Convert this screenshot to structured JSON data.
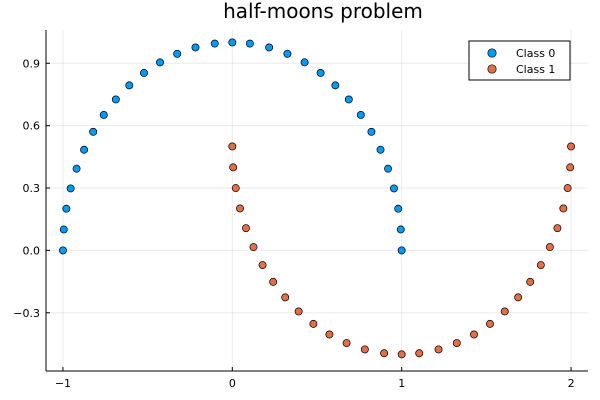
{
  "chart_data": {
    "type": "scatter",
    "title": "half-moons problem",
    "xlabel": "",
    "ylabel": "",
    "xlim": [
      -1.1,
      2.1
    ],
    "ylim": [
      -0.58,
      1.06
    ],
    "x_ticks": [
      -1,
      0,
      1,
      2
    ],
    "x_tick_labels": [
      "−1",
      "0",
      "1",
      "2"
    ],
    "y_ticks": [
      -0.3,
      0.0,
      0.3,
      0.6,
      0.9
    ],
    "y_tick_labels": [
      "−0.3",
      "0.0",
      "0.3",
      "0.6",
      "0.9"
    ],
    "grid": true,
    "legend_position": "top-right",
    "series": [
      {
        "name": "Class 0",
        "color": "#009af9",
        "x": [
          -1.0,
          -0.9949,
          -0.9797,
          -0.9545,
          -0.9195,
          -0.875,
          -0.8214,
          -0.7588,
          -0.6877,
          -0.6084,
          -0.5213,
          -0.4268,
          -0.3253,
          -0.2175,
          -0.1037,
          0.0,
          0.1037,
          0.2175,
          0.3253,
          0.4268,
          0.5213,
          0.6084,
          0.6877,
          0.7588,
          0.8214,
          0.875,
          0.9195,
          0.9545,
          0.9797,
          0.9949,
          1.0
        ],
        "y": [
          0.0,
          0.1006,
          0.2004,
          0.2982,
          0.393,
          0.4841,
          0.5703,
          0.6514,
          0.7259,
          0.7937,
          0.8534,
          0.9043,
          0.9456,
          0.9761,
          0.9946,
          1.0,
          0.9946,
          0.9761,
          0.9456,
          0.9043,
          0.8534,
          0.7937,
          0.7259,
          0.6514,
          0.5703,
          0.4841,
          0.393,
          0.2982,
          0.2004,
          0.1006,
          0.0
        ]
      },
      {
        "name": "Class 1",
        "color": "#e26f46",
        "x": [
          0.0,
          0.0051,
          0.0203,
          0.0455,
          0.0805,
          0.125,
          0.1786,
          0.2412,
          0.3123,
          0.3916,
          0.4787,
          0.5732,
          0.6747,
          0.7825,
          0.8963,
          1.0,
          1.1037,
          1.2175,
          1.3253,
          1.4268,
          1.5213,
          1.6084,
          1.6877,
          1.7588,
          1.8214,
          1.875,
          1.9195,
          1.9545,
          1.9797,
          1.9949,
          2.0
        ],
        "y": [
          0.5,
          0.3994,
          0.2996,
          0.2018,
          0.107,
          0.0159,
          -0.0703,
          -0.1514,
          -0.2259,
          -0.2937,
          -0.3534,
          -0.4043,
          -0.4456,
          -0.4761,
          -0.4946,
          -0.5,
          -0.4946,
          -0.4761,
          -0.4456,
          -0.4043,
          -0.3534,
          -0.2937,
          -0.2259,
          -0.1514,
          -0.0703,
          0.0159,
          0.107,
          0.2018,
          0.2996,
          0.3994,
          0.5
        ]
      }
    ]
  }
}
